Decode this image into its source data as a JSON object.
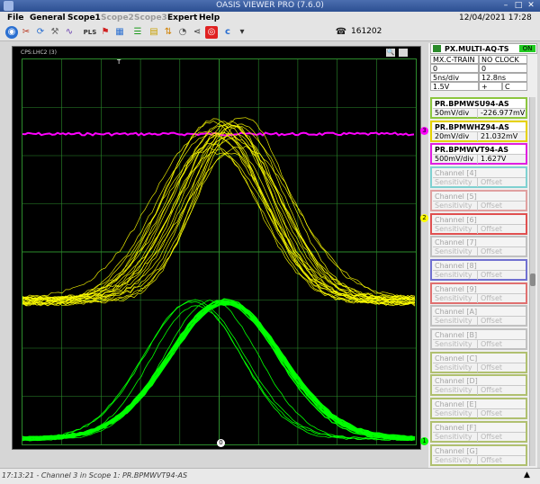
{
  "window": {
    "title": "OASIS VIEWER PRO (7.6.0)"
  },
  "menu": [
    {
      "label": "File",
      "enabled": true
    },
    {
      "label": "General",
      "enabled": true
    },
    {
      "label": "Scope1",
      "enabled": true
    },
    {
      "label": "Scope2",
      "enabled": false
    },
    {
      "label": "Scope3",
      "enabled": false
    },
    {
      "label": "Expert",
      "enabled": true
    },
    {
      "label": "Help",
      "enabled": true
    }
  ],
  "datetime": "12/04/2021 17:28",
  "toolbar": {
    "icons": [
      "globe-icon",
      "tools-icon",
      "refresh-icon",
      "wrench-icon",
      "wave-icon",
      "pls-icon",
      "flag-icon",
      "layout-icon",
      "bars-icon",
      "chart-icon",
      "graph-icon",
      "signal-icon",
      "share-icon",
      "record-icon",
      "c-icon",
      "dropdown-icon"
    ],
    "pls_label": "PLS",
    "c_label": "c",
    "phone_number": "161202"
  },
  "scope": {
    "label": "CPS:LHC2 (3)",
    "trigger_label": "T",
    "bottom_marker": "0",
    "markers": [
      {
        "label": "3",
        "color": "#ff00ff"
      },
      {
        "label": "2",
        "color": "#ffff00"
      },
      {
        "label": "1",
        "color": "#00ff00"
      }
    ],
    "colors": {
      "ch1": "#00ff00",
      "ch2": "#ffff00",
      "ch3": "#ff00ff",
      "grid": "#2c8b2c"
    }
  },
  "panel": {
    "device": "PX.MULTI-AQ-TS",
    "on_label": "ON",
    "trigger_mode": "MX.C-TRAIN",
    "clock": "NO CLOCK",
    "val_a": "0",
    "val_b": "0",
    "time_div": "5ns/div",
    "delay": "12.8ns",
    "level": "1.5V",
    "slope": "+",
    "coupling": "C",
    "channels": [
      {
        "name": "PR.BPMWSU94-AS",
        "sensitivity": "50mV/div",
        "offset": "-226.977mV",
        "color": "#8cc63f",
        "active": true
      },
      {
        "name": "PR.BPMWHZ94-AS",
        "sensitivity": "20mV/div",
        "offset": "21.032mV",
        "color": "#e6d200",
        "active": true
      },
      {
        "name": "PR.BPMWVT94-AS",
        "sensitivity": "500mV/div",
        "offset": "1.627V",
        "color": "#e020e0",
        "active": true
      },
      {
        "name": "Channel [4]",
        "sensitivity": "Sensitivity",
        "offset": "Offset",
        "color": "#7fd1d1",
        "active": false
      },
      {
        "name": "Channel [5]",
        "sensitivity": "Sensitivity",
        "offset": "Offset",
        "color": "#e0a0a0",
        "active": false
      },
      {
        "name": "Channel [6]",
        "sensitivity": "Sensitivity",
        "offset": "Offset",
        "color": "#e05050",
        "active": false
      },
      {
        "name": "Channel [7]",
        "sensitivity": "Sensitivity",
        "offset": "Offset",
        "color": "#c0c0c0",
        "active": false
      },
      {
        "name": "Channel [8]",
        "sensitivity": "Sensitivity",
        "offset": "Offset",
        "color": "#7070d0",
        "active": false
      },
      {
        "name": "Channel [9]",
        "sensitivity": "Sensitivity",
        "offset": "Offset",
        "color": "#e07070",
        "active": false
      },
      {
        "name": "Channel [A]",
        "sensitivity": "Sensitivity",
        "offset": "Offset",
        "color": "#c0c0c0",
        "active": false
      },
      {
        "name": "Channel [B]",
        "sensitivity": "Sensitivity",
        "offset": "Offset",
        "color": "#c0c0c0",
        "active": false
      },
      {
        "name": "Channel [C]",
        "sensitivity": "Sensitivity",
        "offset": "Offset",
        "color": "#b0c070",
        "active": false
      },
      {
        "name": "Channel [D]",
        "sensitivity": "Sensitivity",
        "offset": "Offset",
        "color": "#b0c070",
        "active": false
      },
      {
        "name": "Channel [E]",
        "sensitivity": "Sensitivity",
        "offset": "Offset",
        "color": "#b0c070",
        "active": false
      },
      {
        "name": "Channel [F]",
        "sensitivity": "Sensitivity",
        "offset": "Offset",
        "color": "#b0c070",
        "active": false
      },
      {
        "name": "Channel [G]",
        "sensitivity": "Sensitivity",
        "offset": "Offset",
        "color": "#b0c070",
        "active": false
      }
    ]
  },
  "status": {
    "message": "17:13:21 - Channel 3 in Scope 1: PR.BPMWVT94-AS"
  }
}
